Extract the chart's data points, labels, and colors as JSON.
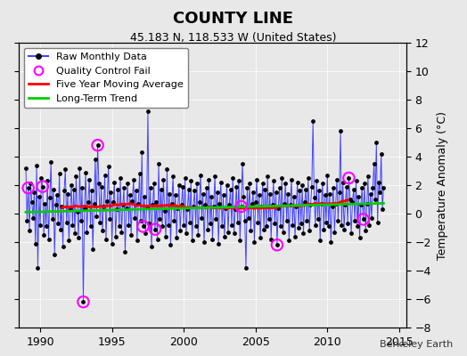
{
  "title": "COUNTY LINE",
  "subtitle": "45.183 N, 118.533 W (United States)",
  "ylabel": "Temperature Anomaly (°C)",
  "credit": "Berkeley Earth",
  "xlim": [
    1988.5,
    2015.5
  ],
  "ylim": [
    -8,
    12
  ],
  "yticks": [
    -8,
    -6,
    -4,
    -2,
    0,
    2,
    4,
    6,
    8,
    10,
    12
  ],
  "xticks": [
    1990,
    1995,
    2000,
    2005,
    2010,
    2015
  ],
  "bg_color": "#e8e8e8",
  "plot_bg": "#e8e8e8",
  "raw_color": "#4444ff",
  "dot_color": "#000000",
  "qc_color": "#ff00ff",
  "ma_color": "#ff0000",
  "trend_color": "#00cc00",
  "seed": 42,
  "n_months": 300,
  "start_year": 1989.0,
  "trend_slope": 0.025,
  "trend_intercept": 0.1,
  "ma_window": 60,
  "qc_indices": [
    2,
    14,
    48,
    60,
    98,
    108,
    180,
    210,
    270,
    282
  ],
  "raw_data": [
    3.2,
    -0.5,
    1.8,
    -1.2,
    2.1,
    0.8,
    -0.3,
    1.5,
    -2.1,
    3.4,
    -3.8,
    1.2,
    -0.8,
    2.5,
    1.9,
    -1.5,
    0.7,
    -0.9,
    2.3,
    -1.8,
    1.1,
    3.6,
    -0.4,
    1.7,
    -2.9,
    0.6,
    1.3,
    -0.7,
    2.8,
    -1.1,
    0.5,
    -2.3,
    1.6,
    3.1,
    -0.6,
    1.4,
    -1.9,
    0.3,
    2.0,
    -0.8,
    1.7,
    -1.4,
    2.6,
    0.1,
    -1.7,
    3.2,
    -0.5,
    1.8,
    -6.2,
    0.4,
    2.9,
    -1.3,
    0.8,
    2.4,
    -0.9,
    1.6,
    -2.5,
    0.7,
    3.8,
    -0.2,
    4.8,
    2.1,
    -0.6,
    1.9,
    -1.2,
    0.5,
    2.7,
    -1.8,
    0.9,
    3.3,
    -0.4,
    1.5,
    -2.1,
    0.8,
    2.2,
    -1.6,
    0.3,
    1.7,
    -0.9,
    2.5,
    -1.3,
    0.6,
    1.8,
    -2.7,
    0.4,
    2.1,
    -0.8,
    1.3,
    -1.5,
    0.9,
    2.4,
    -0.3,
    1.6,
    -1.9,
    0.7,
    2.8,
    -0.5,
    4.3,
    -0.9,
    1.2,
    -1.4,
    0.5,
    7.2,
    -0.7,
    1.8,
    -2.3,
    0.6,
    2.1,
    -1.1,
    0.8,
    -1.8,
    3.5,
    -0.4,
    1.7,
    -0.9,
    2.4,
    0.2,
    -1.6,
    3.1,
    -0.8,
    1.4,
    -2.2,
    0.7,
    2.6,
    -0.5,
    1.3,
    -1.7,
    0.4,
    2.0,
    -1.2,
    0.6,
    1.9,
    -0.8,
    2.5,
    -1.4,
    0.3,
    1.7,
    -0.6,
    2.3,
    -1.9,
    0.5,
    1.6,
    -0.9,
    2.1,
    -1.5,
    0.8,
    2.7,
    -0.3,
    1.4,
    -2.0,
    0.6,
    1.8,
    -1.1,
    2.4,
    -0.7,
    1.2,
    -1.8,
    0.5,
    2.6,
    -0.4,
    1.5,
    -2.1,
    0.7,
    2.2,
    -0.9,
    1.3,
    -1.6,
    0.4,
    2.0,
    -1.3,
    0.6,
    1.7,
    -0.8,
    2.5,
    -1.4,
    0.3,
    1.9,
    -0.6,
    2.3,
    -1.9,
    0.5,
    3.5,
    1.2,
    -0.5,
    -3.8,
    1.8,
    -0.3,
    2.1,
    -1.2,
    0.7,
    1.5,
    -2.0,
    0.8,
    2.4,
    -0.6,
    1.3,
    -1.7,
    0.5,
    2.1,
    -1.1,
    1.7,
    -0.9,
    2.6,
    -0.4,
    1.4,
    -1.8,
    0.6,
    2.3,
    -0.7,
    1.5,
    -2.2,
    0.4,
    1.8,
    -0.9,
    2.5,
    -1.3,
    0.7,
    2.1,
    -0.5,
    1.4,
    -1.9,
    0.6,
    2.4,
    -0.8,
    1.2,
    -1.6,
    0.5,
    2.2,
    -1.0,
    1.6,
    -0.7,
    2.0,
    -1.4,
    0.8,
    1.7,
    -0.5,
    2.5,
    -1.2,
    0.6,
    1.9,
    6.5,
    1.1,
    -0.8,
    2.3,
    -0.4,
    1.6,
    -1.9,
    0.7,
    2.1,
    -1.1,
    1.3,
    -0.6,
    2.7,
    -0.9,
    1.4,
    -2.0,
    0.5,
    1.8,
    -1.3,
    0.7,
    2.4,
    -0.5,
    1.5,
    5.8,
    -0.8,
    2.2,
    -1.1,
    0.6,
    1.9,
    -0.7,
    2.5,
    1.0,
    -1.4,
    0.8,
    1.7,
    -0.5,
    2.3,
    -0.9,
    1.2,
    -1.7,
    0.6,
    1.8,
    -0.4,
    2.1,
    -1.2,
    0.7,
    2.6,
    -0.8,
    1.4,
    -0.3,
    1.8,
    3.5,
    1.0,
    5.0,
    -0.6,
    2.2,
    1.5,
    4.2,
    0.3,
    1.8
  ]
}
